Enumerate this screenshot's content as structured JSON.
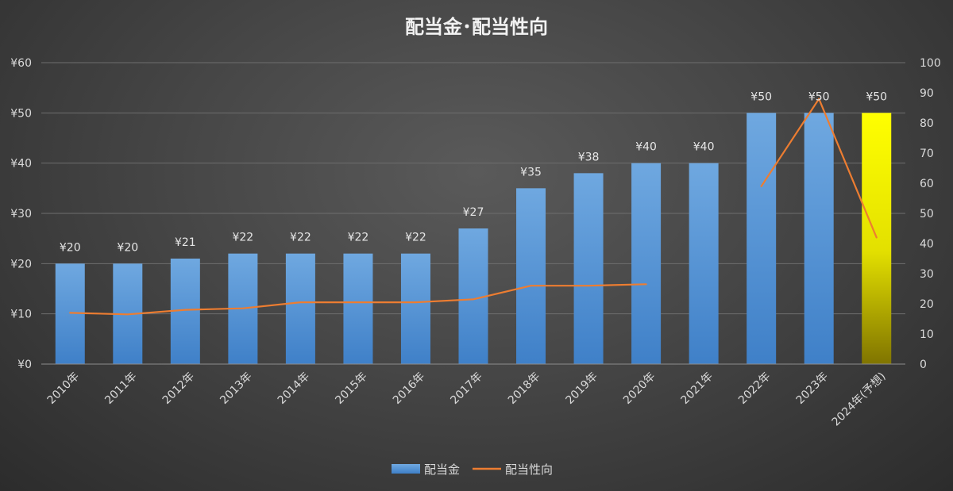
{
  "chart_data": {
    "type": "bar",
    "title": "配当金･配当性向",
    "categories": [
      "2010年",
      "2011年",
      "2012年",
      "2013年",
      "2014年",
      "2015年",
      "2016年",
      "2017年",
      "2018年",
      "2019年",
      "2020年",
      "2021年",
      "2022年",
      "2023年",
      "2024年(予想)"
    ],
    "series": [
      {
        "name": "配当金",
        "type": "bar",
        "axis": "left",
        "values": [
          20,
          20,
          21,
          22,
          22,
          22,
          22,
          27,
          35,
          38,
          40,
          40,
          50,
          50,
          50
        ],
        "data_labels": [
          "¥20",
          "¥20",
          "¥21",
          "¥22",
          "¥22",
          "¥22",
          "¥22",
          "¥27",
          "¥35",
          "¥38",
          "¥40",
          "¥40",
          "¥50",
          "¥50",
          "¥50"
        ],
        "color": "#5b9bd5",
        "highlight_color": "#ffff00",
        "highlight_index": 14
      },
      {
        "name": "配当性向",
        "type": "line",
        "axis": "right",
        "segments": [
          {
            "start": 0,
            "values": [
              17,
              16.5,
              18,
              18.5,
              20.5,
              20.5,
              20.5,
              21.5,
              26,
              26,
              26.5
            ]
          },
          {
            "start": 12,
            "values": [
              59,
              88,
              42
            ]
          }
        ],
        "color": "#ed7d31"
      }
    ],
    "y_left": {
      "range": [
        0,
        60
      ],
      "ticks": [
        "¥0",
        "¥10",
        "¥20",
        "¥30",
        "¥40",
        "¥50",
        "¥60"
      ]
    },
    "y_right": {
      "range": [
        0,
        100
      ],
      "ticks": [
        "0",
        "10",
        "20",
        "30",
        "40",
        "50",
        "60",
        "70",
        "80",
        "90",
        "100"
      ]
    },
    "grid": true,
    "legend_position": "bottom"
  }
}
